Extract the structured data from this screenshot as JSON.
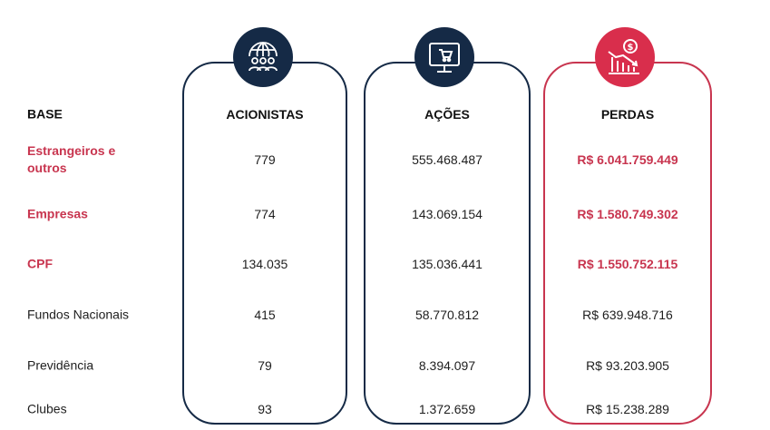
{
  "columns": {
    "base": "BASE",
    "acionistas": "ACIONISTAS",
    "acoes": "AÇÕES",
    "perdas": "PERDAS"
  },
  "icons": {
    "acionistas": "globe-people-icon",
    "acoes": "monitor-cart-icon",
    "perdas": "declining-chart-dollar-icon"
  },
  "colors": {
    "navy": "#152a46",
    "accent": "#c8354f",
    "accent_fill": "#d92e4c"
  },
  "rows": [
    {
      "label": "Estrangeiros e outros",
      "acionistas": "779",
      "acoes": "555.468.487",
      "perdas": "R$ 6.041.759.449"
    },
    {
      "label": "Empresas",
      "acionistas": "774",
      "acoes": "143.069.154",
      "perdas": "R$ 1.580.749.302"
    },
    {
      "label": "CPF",
      "acionistas": "134.035",
      "acoes": "135.036.441",
      "perdas": "R$ 1.550.752.115"
    },
    {
      "label": "Fundos Nacionais",
      "acionistas": "415",
      "acoes": "58.770.812",
      "perdas": "R$ 639.948.716"
    },
    {
      "label": "Previdência",
      "acionistas": "79",
      "acoes": "8.394.097",
      "perdas": "R$ 93.203.905"
    },
    {
      "label": "Clubes",
      "acionistas": "93",
      "acoes": "1.372.659",
      "perdas": "R$ 15.238.289"
    }
  ]
}
